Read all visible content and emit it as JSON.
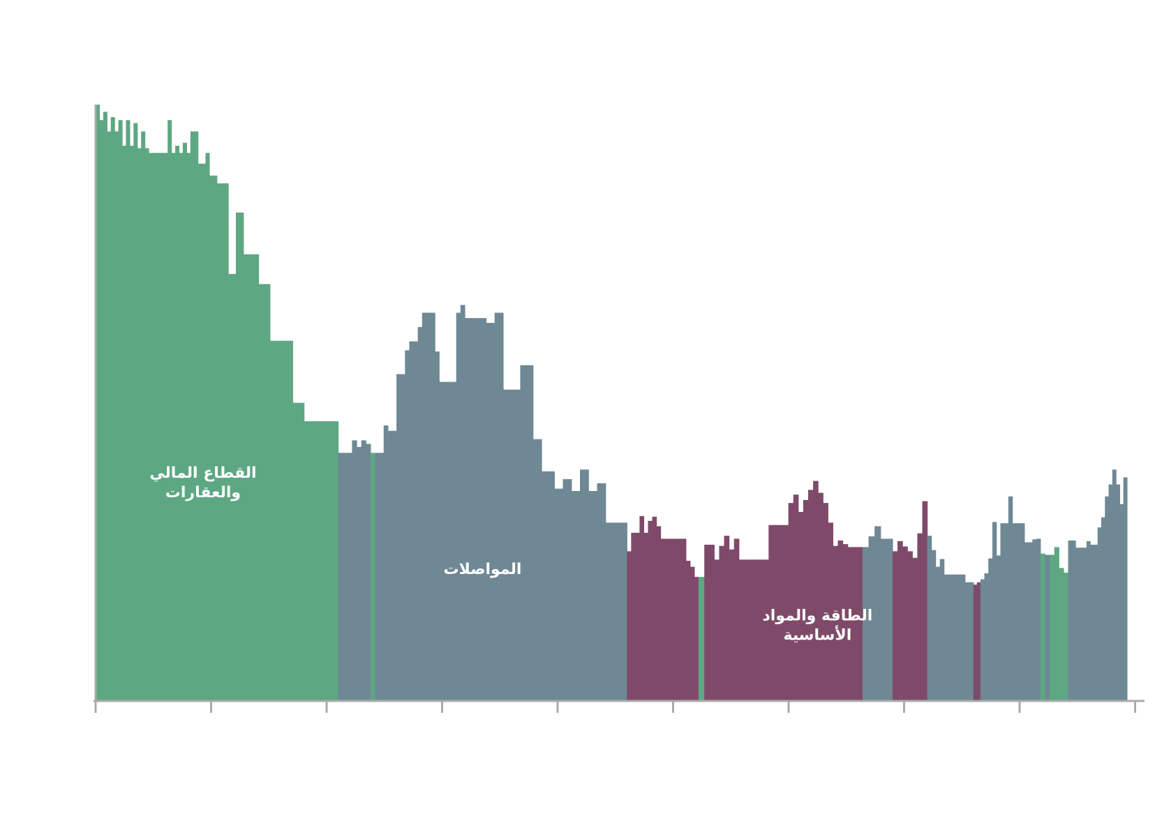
{
  "chart_data": {
    "type": "bar",
    "title": "",
    "xlabel": "",
    "ylabel": "",
    "xlim": [
      0,
      9
    ],
    "ylim": [
      0,
      100
    ],
    "x_ticks": [
      0,
      1,
      2,
      3,
      4,
      5,
      6,
      7,
      8,
      9
    ],
    "grid": false,
    "legend": "none",
    "colors": {
      "finance": "#5da783",
      "transport": "#6e8894",
      "energy": "#7f4a69",
      "axis": "#aaaaaa"
    },
    "annotations": [
      {
        "series": "finance",
        "lines": [
          "القطاع المالي",
          "والعقارات"
        ],
        "x": 0.93,
        "y": 37.4
      },
      {
        "series": "transport",
        "lines": [
          "المواصلات"
        ],
        "x": 3.35,
        "y": 21.3
      },
      {
        "series": "energy",
        "lines": [
          "الطاقة والمواد",
          "الأساسية"
        ],
        "x": 6.25,
        "y": 13.5
      }
    ],
    "segments": [
      {
        "series": "finance",
        "x0": 0.0,
        "x1": 2.1,
        "values": [
          100,
          97.4,
          98.8,
          95.5,
          97.9,
          95.5,
          97.4,
          93.1,
          97.4,
          93.1,
          96.9,
          92.7,
          95.5,
          92.7,
          91.9,
          91.9,
          91.9,
          91.9,
          91.9,
          97.4,
          91.9,
          93.1,
          91.9,
          93.6,
          91.9,
          95.5,
          95.5,
          90.1,
          90.1,
          91.9,
          88.1,
          88.1,
          86.8,
          86.8,
          86.8,
          71.6,
          71.6,
          81.9,
          81.9,
          74.9,
          74.9,
          74.9,
          74.9,
          69.9,
          69.9,
          69.9,
          60.4,
          60.4,
          60.4,
          60.4,
          60.4,
          60.4,
          50.0,
          50.0,
          50.0,
          46.9,
          46.9,
          46.9,
          46.9,
          46.9,
          46.9,
          46.9,
          46.9,
          46.9
        ]
      },
      {
        "series": "transport",
        "x0": 2.1,
        "x1": 2.38,
        "values": [
          41.6,
          41.6,
          41.6,
          43.7,
          42.6,
          43.7,
          43.1
        ]
      },
      {
        "series": "finance",
        "x0": 2.38,
        "x1": 2.42,
        "values": [
          41.6
        ]
      },
      {
        "series": "transport",
        "x0": 2.42,
        "x1": 4.6,
        "values": [
          41.6,
          41.6,
          46.2,
          45.3,
          45.3,
          54.8,
          54.8,
          58.8,
          60.3,
          60.3,
          62.7,
          65.1,
          65.1,
          65.1,
          58.6,
          53.5,
          53.5,
          53.5,
          53.5,
          65.1,
          66.4,
          64.2,
          64.2,
          64.2,
          64.2,
          64.2,
          63.4,
          63.4,
          65.1,
          65.1,
          52.2,
          52.2,
          52.2,
          52.2,
          56.3,
          56.3,
          56.3,
          43.9,
          43.9,
          38.5,
          38.5,
          38.5,
          35.6,
          35.6,
          37.2,
          37.2,
          35.2,
          35.2,
          38.8,
          38.8,
          35.2,
          35.2,
          36.5,
          36.5,
          29.9,
          29.9,
          29.9,
          29.9,
          29.9
        ]
      },
      {
        "series": "energy",
        "x0": 4.6,
        "x1": 5.22,
        "values": [
          25.1,
          28.2,
          28.2,
          31.0,
          28.2,
          30.2,
          30.9,
          29.3,
          27.2,
          27.2,
          27.2,
          27.2,
          27.2,
          27.2,
          23.5,
          22.5,
          20.8
        ]
      },
      {
        "series": "finance",
        "x0": 5.22,
        "x1": 5.27,
        "values": [
          20.8
        ]
      },
      {
        "series": "energy",
        "x0": 5.27,
        "x1": 6.64,
        "values": [
          26.2,
          26.2,
          23.7,
          26.0,
          27.7,
          25.4,
          27.2,
          23.7,
          23.7,
          23.7,
          23.7,
          23.7,
          23.7,
          29.5,
          29.5,
          29.5,
          29.5,
          33.2,
          34.6,
          31.7,
          33.7,
          35.4,
          36.9,
          34.9,
          33.2,
          29.9,
          26.0,
          26.9,
          26.3,
          25.8,
          25.8,
          25.8
        ]
      },
      {
        "series": "transport",
        "x0": 6.64,
        "x1": 6.9,
        "values": [
          25.8,
          27.6,
          29.3,
          27.2,
          27.2
        ]
      },
      {
        "series": "energy",
        "x0": 6.9,
        "x1": 7.2,
        "values": [
          25.1,
          26.8,
          25.9,
          25.1,
          24.0,
          28.1,
          33.5
        ]
      },
      {
        "series": "transport",
        "x0": 7.2,
        "x1": 7.6,
        "values": [
          27.7,
          25.3,
          22.5,
          23.8,
          21.2,
          21.2,
          21.2,
          21.2,
          21.2,
          19.9,
          19.9
        ]
      },
      {
        "series": "energy",
        "x0": 7.6,
        "x1": 7.66,
        "values": [
          19.5,
          19.9
        ]
      },
      {
        "series": "transport",
        "x0": 7.66,
        "x1": 8.18,
        "values": [
          20.4,
          21.4,
          23.9,
          30.0,
          24.4,
          29.8,
          29.8,
          34.3,
          29.8,
          29.8,
          29.8,
          26.6,
          26.6,
          27.1,
          27.2
        ]
      },
      {
        "series": "finance",
        "x0": 8.18,
        "x1": 8.22,
        "values": [
          24.7
        ]
      },
      {
        "series": "transport",
        "x0": 8.22,
        "x1": 8.26,
        "values": [
          24.5
        ]
      },
      {
        "series": "finance",
        "x0": 8.26,
        "x1": 8.42,
        "values": [
          24.5,
          25.8,
          22.3,
          21.5
        ]
      },
      {
        "series": "transport",
        "x0": 8.42,
        "x1": 8.93,
        "values": [
          26.9,
          26.9,
          25.7,
          25.7,
          25.7,
          26.8,
          26.2,
          26.2,
          29.1,
          30.8,
          34.3,
          36.3,
          38.8,
          36.3,
          33.0,
          37.5
        ]
      }
    ]
  }
}
